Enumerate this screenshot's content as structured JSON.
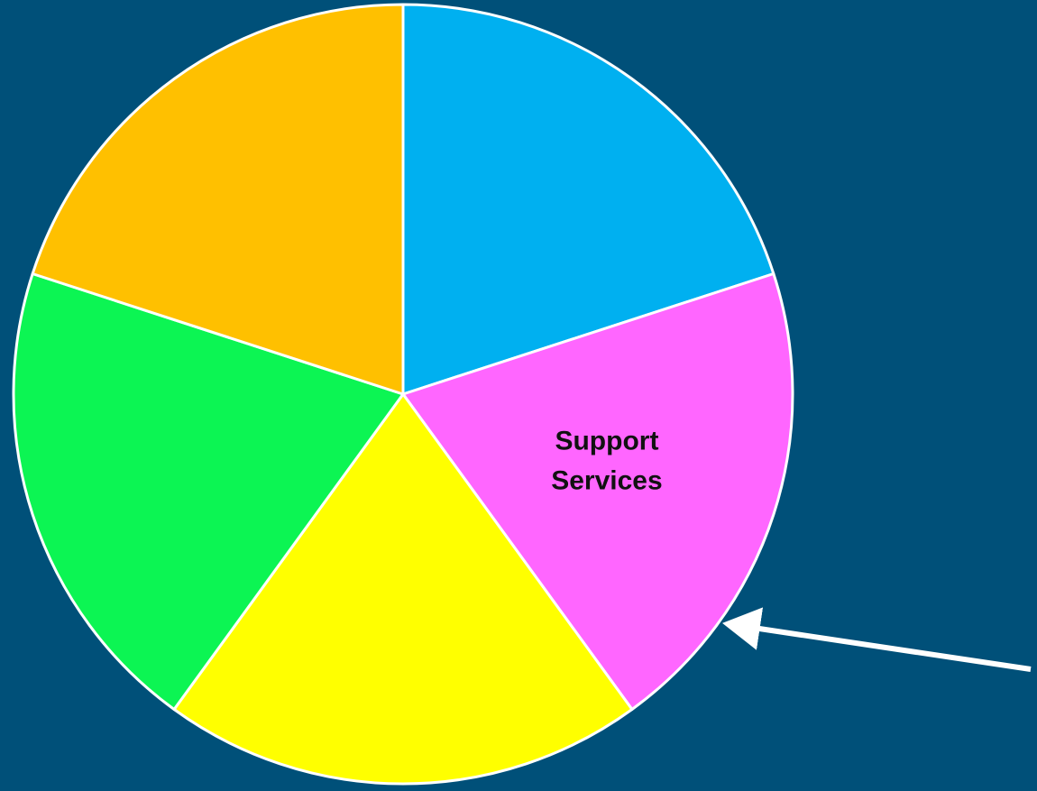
{
  "background_color": "#005079",
  "chart_data": {
    "type": "pie",
    "start_angle_deg": 0,
    "direction": "clockwise",
    "slices": [
      {
        "value": 20,
        "color": "#00B0F0",
        "label": ""
      },
      {
        "value": 20,
        "color": "#FF66FF",
        "label": [
          "Support",
          "Services"
        ]
      },
      {
        "value": 20,
        "color": "#FFFF00",
        "label": ""
      },
      {
        "value": 20,
        "color": "#0CF553",
        "label": ""
      },
      {
        "value": 20,
        "color": "#FFC000",
        "label": ""
      }
    ],
    "slice_border_color": "#FFFFFF",
    "annotation": {
      "type": "arrow",
      "color": "#FFFFFF",
      "points_to_slice_index": 1
    }
  }
}
